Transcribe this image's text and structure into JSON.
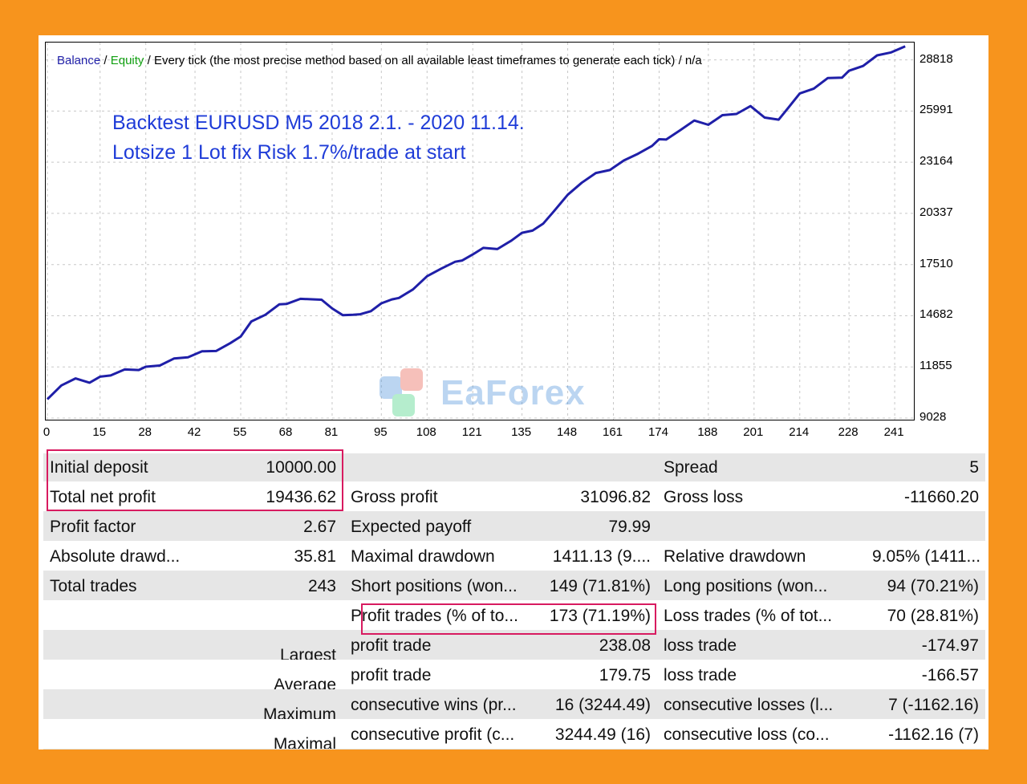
{
  "chart": {
    "header": {
      "balance_label": "Balance",
      "sep1": " / ",
      "equity_label": "Equity",
      "rest": " / Every tick (the most precise method based on all available least timeframes to generate each tick) / n/a"
    },
    "annotation_line1": "Backtest EURUSD M5  2018 2.1. - 2020 11.14.",
    "annotation_line2": "Lotsize 1 Lot fix Risk 1.7%/trade at start",
    "watermark_text": "EaForex",
    "line_color": "#1f1fa8"
  },
  "chart_data": {
    "type": "line",
    "title": "Balance / Equity / Every tick (the most precise method based on all available least timeframes to generate each tick) / n/a",
    "x_ticks": [
      0,
      15,
      28,
      42,
      55,
      68,
      81,
      95,
      108,
      121,
      135,
      148,
      161,
      174,
      188,
      201,
      214,
      228,
      241
    ],
    "y_ticks": [
      9028,
      11855,
      14682,
      17510,
      20337,
      23164,
      25991,
      28818
    ],
    "xlim": [
      0,
      246
    ],
    "ylim": [
      9028,
      29600
    ],
    "grid": true,
    "series": [
      {
        "name": "Balance",
        "x": [
          0,
          4,
          8,
          12,
          15,
          18,
          22,
          26,
          28,
          32,
          36,
          40,
          44,
          48,
          52,
          55,
          58,
          62,
          66,
          68,
          72,
          76,
          78,
          81,
          84,
          87,
          89,
          92,
          95,
          98,
          100,
          104,
          108,
          112,
          116,
          118,
          121,
          124,
          128,
          132,
          135,
          138,
          141,
          144,
          148,
          152,
          156,
          160,
          164,
          168,
          172,
          174,
          176,
          180,
          184,
          188,
          192,
          196,
          200,
          204,
          208,
          211,
          214,
          218,
          222,
          226,
          228,
          232,
          236,
          240,
          244
        ],
        "values": [
          10000,
          10900,
          11150,
          11050,
          11250,
          11450,
          11650,
          11750,
          11800,
          12000,
          12250,
          12450,
          12650,
          12800,
          13100,
          13600,
          14300,
          14800,
          15250,
          15400,
          15550,
          15650,
          15500,
          15150,
          14650,
          14800,
          14700,
          15000,
          15300,
          15650,
          15600,
          16200,
          16800,
          17350,
          17600,
          17800,
          18000,
          18500,
          18300,
          18900,
          19200,
          19450,
          19700,
          20500,
          21300,
          22100,
          22500,
          22800,
          23200,
          23700,
          24000,
          24500,
          24350,
          25000,
          25400,
          25300,
          25700,
          25900,
          26200,
          25700,
          25450,
          26300,
          26900,
          27300,
          27750,
          27900,
          28150,
          28550,
          29000,
          29300,
          29500
        ]
      }
    ]
  },
  "stats": {
    "rows": [
      [
        "Initial deposit",
        "10000.00",
        "",
        "",
        "Spread",
        "5"
      ],
      [
        "Total net profit",
        "19436.62",
        "Gross profit",
        "31096.82",
        "Gross loss",
        "-11660.20"
      ],
      [
        "Profit factor",
        "2.67",
        "Expected payoff",
        "79.99",
        "",
        ""
      ],
      [
        "Absolute drawd...",
        "35.81",
        "Maximal drawdown",
        "1411.13 (9....",
        "Relative drawdown",
        "9.05% (1411..."
      ],
      [
        "Total trades",
        "243",
        "Short positions (won...",
        "149 (71.81%)",
        "Long positions (won...",
        "94 (70.21%)"
      ],
      [
        "",
        "",
        "Profit trades (% of to...",
        "173 (71.19%)",
        "Loss trades (% of tot...",
        "70 (28.81%)"
      ],
      [
        "",
        "Largest",
        "profit trade",
        "238.08",
        "loss trade",
        "-174.97"
      ],
      [
        "",
        "Average",
        "profit trade",
        "179.75",
        "loss trade",
        "-166.57"
      ],
      [
        "",
        "Maximum",
        "consecutive wins (pr...",
        "16 (3244.49)",
        "consecutive losses (l...",
        "7 (-1162.16)"
      ],
      [
        "",
        "Maximal",
        "consecutive profit (c...",
        "3244.49 (16)",
        "consecutive loss (co...",
        "-1162.16 (7)"
      ]
    ]
  }
}
